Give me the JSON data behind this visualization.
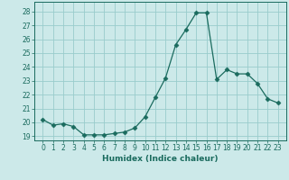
{
  "x": [
    0,
    1,
    2,
    3,
    4,
    5,
    6,
    7,
    8,
    9,
    10,
    11,
    12,
    13,
    14,
    15,
    16,
    17,
    18,
    19,
    20,
    21,
    22,
    23
  ],
  "y": [
    20.2,
    19.8,
    19.9,
    19.7,
    19.1,
    19.1,
    19.1,
    19.2,
    19.3,
    19.6,
    20.4,
    21.8,
    23.2,
    25.6,
    26.7,
    27.9,
    27.9,
    23.1,
    23.8,
    23.5,
    23.5,
    22.8,
    21.7,
    21.4
  ],
  "xlabel": "Humidex (Indice chaleur)",
  "ylim": [
    18.7,
    28.7
  ],
  "yticks": [
    19,
    20,
    21,
    22,
    23,
    24,
    25,
    26,
    27,
    28
  ],
  "xticks": [
    0,
    1,
    2,
    3,
    4,
    5,
    6,
    7,
    8,
    9,
    10,
    11,
    12,
    13,
    14,
    15,
    16,
    17,
    18,
    19,
    20,
    21,
    22,
    23
  ],
  "line_color": "#1a6b5e",
  "marker": "D",
  "marker_size": 2.5,
  "bg_color": "#cce9e9",
  "grid_color": "#99cccc",
  "label_fontsize": 6.5,
  "tick_fontsize": 5.5
}
